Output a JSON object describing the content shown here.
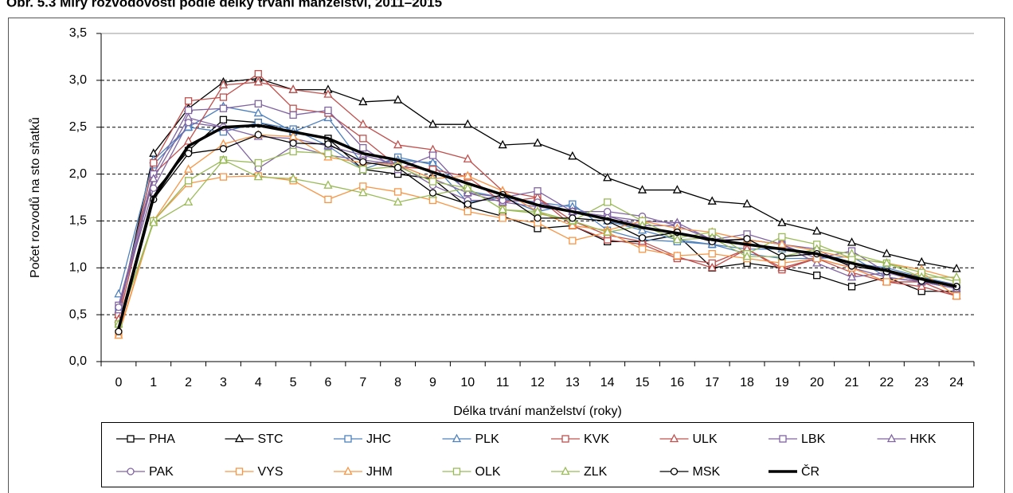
{
  "chart_data": {
    "type": "line",
    "title": "Obr. 5.3 Míry rozvodovosti podle délky trvání manželství, 2011–2015",
    "x_label": "Délka trvání manželství (roky)",
    "y_label": "Počet rozvodů na sto sňatků",
    "categories": [
      "0",
      "1",
      "2",
      "3",
      "4",
      "5",
      "6",
      "7",
      "8",
      "9",
      "10",
      "11",
      "12",
      "13",
      "14",
      "15",
      "16",
      "17",
      "18",
      "19",
      "20",
      "21",
      "22",
      "23",
      "24"
    ],
    "ylim": [
      0,
      3.5
    ],
    "yticks": [
      {
        "value": 0,
        "label": "0,0"
      },
      {
        "value": 0.5,
        "label": "0,5"
      },
      {
        "value": 1,
        "label": "1,0"
      },
      {
        "value": 1.5,
        "label": "1,5"
      },
      {
        "value": 2,
        "label": "2,0"
      },
      {
        "value": 2.5,
        "label": "2,5"
      },
      {
        "value": 3,
        "label": "3,0"
      },
      {
        "value": 3.5,
        "label": "3,5"
      }
    ],
    "grid": true,
    "legend": "bottom",
    "series": [
      {
        "name": "PHA",
        "color": "#000000",
        "marker": "square",
        "values": [
          0.4,
          1.8,
          2.25,
          2.58,
          2.55,
          2.45,
          2.38,
          2.05,
          2.0,
          1.95,
          1.65,
          1.55,
          1.42,
          1.45,
          1.28,
          1.28,
          1.35,
          1.0,
          1.05,
          1.0,
          0.92,
          0.8,
          0.9,
          0.75,
          0.75
        ]
      },
      {
        "name": "STC",
        "color": "#000000",
        "marker": "triangle",
        "values": [
          0.5,
          2.22,
          2.7,
          2.98,
          3.02,
          2.9,
          2.9,
          2.77,
          2.79,
          2.53,
          2.53,
          2.31,
          2.33,
          2.19,
          1.96,
          1.83,
          1.83,
          1.71,
          1.68,
          1.48,
          1.39,
          1.27,
          1.15,
          1.06,
          0.99
        ]
      },
      {
        "name": "JHC",
        "color": "#4f81bd",
        "marker": "square",
        "values": [
          0.55,
          2.1,
          2.5,
          2.45,
          2.55,
          2.48,
          2.3,
          2.05,
          2.18,
          2.1,
          1.7,
          1.75,
          1.6,
          1.68,
          1.4,
          1.3,
          1.28,
          1.25,
          1.15,
          1.1,
          1.1,
          1.12,
          0.9,
          0.85,
          0.78
        ]
      },
      {
        "name": "PLK",
        "color": "#4f81bd",
        "marker": "triangle",
        "values": [
          0.72,
          2.15,
          2.5,
          2.72,
          2.65,
          2.45,
          2.6,
          2.1,
          2.15,
          2.12,
          1.82,
          1.75,
          1.7,
          1.65,
          1.5,
          1.4,
          1.3,
          1.25,
          1.2,
          1.2,
          1.15,
          1.05,
          1.0,
          0.9,
          0.82
        ]
      },
      {
        "name": "KVK",
        "color": "#c0504d",
        "marker": "square",
        "values": [
          0.5,
          2.12,
          2.78,
          2.82,
          3.07,
          2.7,
          2.65,
          2.38,
          2.08,
          2.05,
          1.97,
          1.7,
          1.75,
          1.45,
          1.3,
          1.25,
          1.1,
          1.05,
          1.2,
          0.98,
          1.1,
          1.0,
          0.85,
          0.85,
          0.7
        ]
      },
      {
        "name": "ULK",
        "color": "#c0504d",
        "marker": "triangle",
        "values": [
          0.45,
          2.0,
          2.35,
          2.95,
          2.98,
          2.9,
          2.85,
          2.53,
          2.31,
          2.26,
          2.16,
          1.82,
          1.75,
          1.5,
          1.35,
          1.28,
          1.12,
          1.0,
          1.2,
          1.0,
          1.1,
          0.95,
          0.85,
          0.8,
          0.7
        ]
      },
      {
        "name": "LBK",
        "color": "#8064a2",
        "marker": "square",
        "values": [
          0.6,
          2.0,
          2.68,
          2.7,
          2.75,
          2.63,
          2.68,
          2.28,
          2.05,
          2.2,
          1.8,
          1.75,
          1.82,
          1.6,
          1.55,
          1.45,
          1.45,
          1.3,
          1.36,
          1.25,
          1.1,
          1.18,
          0.95,
          0.88,
          0.82
        ]
      },
      {
        "name": "HKK",
        "color": "#8064a2",
        "marker": "triangle",
        "values": [
          0.55,
          1.95,
          2.6,
          2.5,
          2.4,
          2.38,
          2.3,
          2.2,
          2.1,
          1.95,
          1.8,
          1.7,
          1.65,
          1.6,
          1.55,
          1.5,
          1.48,
          1.3,
          1.3,
          1.25,
          1.05,
          0.9,
          0.95,
          0.85,
          0.78
        ]
      },
      {
        "name": "PAK",
        "color": "#8064a2",
        "marker": "circle",
        "values": [
          0.58,
          1.85,
          2.55,
          2.5,
          2.06,
          2.3,
          2.2,
          2.15,
          2.1,
          1.88,
          1.72,
          1.72,
          1.7,
          1.6,
          1.6,
          1.55,
          1.45,
          1.3,
          1.3,
          1.25,
          1.2,
          1.0,
          0.9,
          0.85,
          0.78
        ]
      },
      {
        "name": "VYS",
        "color": "#f79646",
        "marker": "square",
        "values": [
          0.3,
          1.5,
          1.9,
          1.97,
          1.98,
          1.93,
          1.73,
          1.87,
          1.81,
          1.72,
          1.6,
          1.53,
          1.48,
          1.29,
          1.38,
          1.2,
          1.13,
          1.15,
          1.1,
          1.05,
          1.1,
          1.0,
          0.85,
          0.95,
          0.7
        ]
      },
      {
        "name": "JHM",
        "color": "#f79646",
        "marker": "triangle",
        "values": [
          0.28,
          1.5,
          2.05,
          2.32,
          2.42,
          2.4,
          2.18,
          2.12,
          2.1,
          1.95,
          1.98,
          1.82,
          1.6,
          1.45,
          1.4,
          1.5,
          1.42,
          1.38,
          1.3,
          1.25,
          1.18,
          1.1,
          1.05,
          0.98,
          0.88
        ]
      },
      {
        "name": "OLK",
        "color": "#9bbb59",
        "marker": "square",
        "values": [
          0.4,
          1.5,
          1.93,
          2.15,
          2.12,
          2.24,
          2.22,
          2.05,
          2.08,
          1.92,
          1.85,
          1.62,
          1.58,
          1.5,
          1.7,
          1.5,
          1.32,
          1.38,
          1.15,
          1.33,
          1.25,
          1.1,
          1.05,
          0.95,
          0.85
        ]
      },
      {
        "name": "ZLK",
        "color": "#9bbb59",
        "marker": "triangle",
        "values": [
          0.4,
          1.48,
          1.7,
          2.15,
          1.97,
          1.95,
          1.88,
          1.8,
          1.7,
          1.78,
          1.85,
          1.62,
          1.6,
          1.5,
          1.38,
          1.45,
          1.3,
          1.32,
          1.12,
          1.12,
          1.2,
          1.15,
          1.05,
          0.9,
          0.9
        ]
      },
      {
        "name": "MSK",
        "color": "#000000",
        "marker": "circle",
        "values": [
          0.32,
          1.73,
          2.22,
          2.27,
          2.42,
          2.33,
          2.32,
          2.13,
          2.07,
          1.8,
          1.68,
          1.78,
          1.53,
          1.53,
          1.5,
          1.32,
          1.38,
          1.28,
          1.31,
          1.12,
          1.15,
          1.02,
          0.96,
          0.86,
          0.8
        ]
      },
      {
        "name": "ČR",
        "color": "#000000",
        "width": 3.5,
        "values": [
          0.35,
          1.75,
          2.3,
          2.5,
          2.52,
          2.45,
          2.38,
          2.22,
          2.15,
          2.02,
          1.9,
          1.78,
          1.67,
          1.6,
          1.52,
          1.43,
          1.37,
          1.3,
          1.25,
          1.2,
          1.15,
          1.05,
          0.97,
          0.88,
          0.8
        ]
      }
    ]
  }
}
